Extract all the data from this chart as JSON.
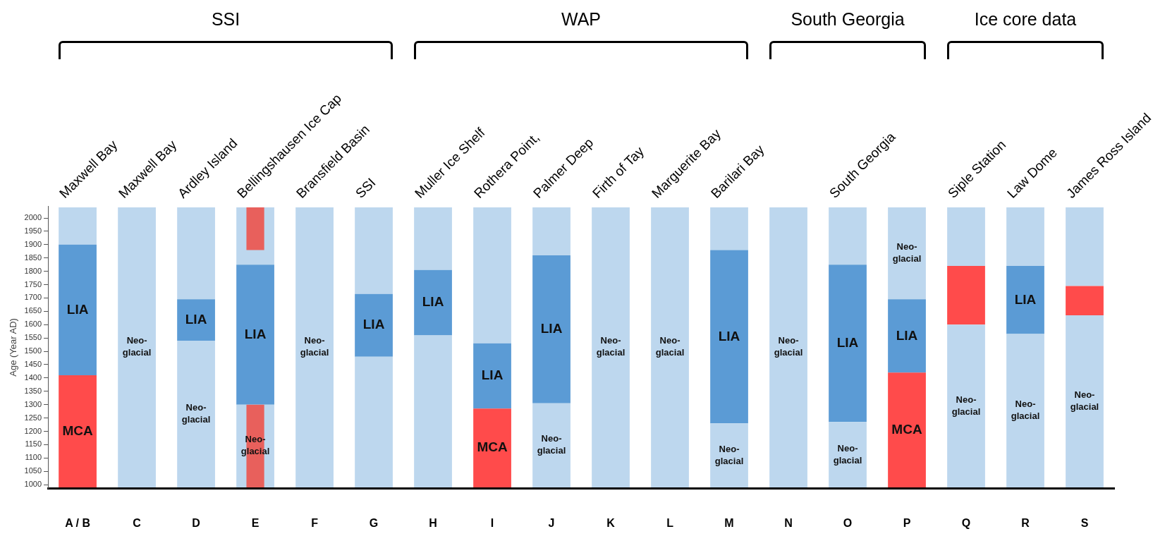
{
  "chart_data": {
    "type": "bar",
    "ylabel": "Age (Year AD)",
    "categories": [
      "A / B",
      "C",
      "D",
      "E",
      "F",
      "G",
      "H",
      "I",
      "J",
      "K",
      "L",
      "M",
      "N",
      "O",
      "P",
      "Q",
      "R",
      "S"
    ],
    "ylim": [
      985,
      2045
    ],
    "yticks": [
      1000,
      1050,
      1100,
      1150,
      1200,
      1250,
      1300,
      1350,
      1400,
      1450,
      1500,
      1550,
      1600,
      1650,
      1700,
      1750,
      1800,
      1850,
      1900,
      1950,
      2000
    ],
    "series": [
      {
        "base": [
          990,
          990,
          990,
          990,
          990,
          990,
          990,
          990,
          990,
          990,
          990,
          990,
          990,
          990,
          990,
          990,
          990,
          990
        ],
        "values": [
          420,
          1050,
          550,
          310,
          1050,
          490,
          570,
          295,
          315,
          1050,
          1050,
          240,
          1050,
          245,
          430,
          610,
          575,
          645
        ],
        "colors": [
          "#ff4b4b",
          "#bdd7ee",
          "#bdd7ee",
          "#bdd7ee",
          "#bdd7ee",
          "#bdd7ee",
          "#bdd7ee",
          "#ff4b4b",
          "#bdd7ee",
          "#bdd7ee",
          "#bdd7ee",
          "#bdd7ee",
          "#bdd7ee",
          "#bdd7ee",
          "#ff4b4b",
          "#bdd7ee",
          "#bdd7ee",
          "#bdd7ee"
        ],
        "value_labels": [
          "MCA",
          "Neo-glacial",
          "Neo-glacial",
          "Neo-glacial",
          "Neo-glacial",
          null,
          null,
          "MCA",
          "Neo-glacial",
          "Neo-glacial",
          "Neo-glacial",
          "Neo-glacial",
          "Neo-glacial",
          "Neo-glacial",
          "MCA",
          "Neo-glacial",
          "Neo-glacial",
          "Neo-glacial"
        ]
      },
      {
        "base": [
          1410,
          null,
          1540,
          1300,
          null,
          1480,
          1560,
          1285,
          1305,
          null,
          null,
          1230,
          null,
          1235,
          1420,
          1600,
          1565,
          1635
        ],
        "values": [
          490,
          null,
          155,
          525,
          null,
          235,
          245,
          245,
          555,
          null,
          null,
          650,
          null,
          590,
          275,
          220,
          255,
          110
        ],
        "colors": [
          "#5b9bd5",
          "#5b9bd5",
          "#5b9bd5",
          "#5b9bd5",
          "#5b9bd5",
          "#5b9bd5",
          "#5b9bd5",
          "#5b9bd5",
          "#5b9bd5",
          "#5b9bd5",
          "#5b9bd5",
          "#5b9bd5",
          "#5b9bd5",
          "#5b9bd5",
          "#5b9bd5",
          "#ff4b4b",
          "#5b9bd5",
          "#ff4b4b"
        ],
        "value_labels": [
          "LIA",
          null,
          "LIA",
          "LIA",
          null,
          "LIA",
          "LIA",
          "LIA",
          "LIA",
          null,
          null,
          "LIA",
          null,
          "LIA",
          "LIA",
          null,
          "LIA",
          null
        ]
      },
      {
        "base": [
          1900,
          null,
          1695,
          1825,
          null,
          1715,
          1805,
          1530,
          1860,
          null,
          null,
          1880,
          null,
          1825,
          1695,
          1820,
          1820,
          1745
        ],
        "values": [
          140,
          null,
          345,
          215,
          null,
          325,
          235,
          510,
          180,
          null,
          null,
          160,
          null,
          215,
          345,
          220,
          220,
          295
        ],
        "colors": [
          "#bdd7ee",
          "#bdd7ee",
          "#bdd7ee",
          "#bdd7ee",
          "#bdd7ee",
          "#bdd7ee",
          "#bdd7ee",
          "#bdd7ee",
          "#bdd7ee",
          "#bdd7ee",
          "#bdd7ee",
          "#bdd7ee",
          "#bdd7ee",
          "#bdd7ee",
          "#bdd7ee",
          "#bdd7ee",
          "#bdd7ee",
          "#bdd7ee"
        ],
        "value_labels": [
          null,
          null,
          null,
          null,
          null,
          null,
          null,
          null,
          null,
          null,
          null,
          null,
          null,
          null,
          "Neo-glacial",
          null,
          null,
          null
        ]
      },
      {
        "base": [
          null,
          null,
          null,
          990,
          null,
          null,
          null,
          null,
          null,
          null,
          null,
          null,
          null,
          null,
          null,
          null,
          null,
          null
        ],
        "values": [
          null,
          null,
          null,
          310,
          null,
          null,
          null,
          null,
          null,
          null,
          null,
          null,
          null,
          null,
          null,
          null,
          null,
          null
        ],
        "color": "#e8605c"
      },
      {
        "base": [
          null,
          null,
          null,
          1880,
          null,
          null,
          null,
          null,
          null,
          null,
          null,
          null,
          null,
          null,
          null,
          null,
          null,
          null
        ],
        "values": [
          null,
          null,
          null,
          160,
          null,
          null,
          null,
          null,
          null,
          null,
          null,
          null,
          null,
          null,
          null,
          null,
          null,
          null
        ],
        "color": "#e8605c"
      }
    ],
    "annotations": [
      "SSI",
      "WAP",
      "South Georgia",
      "Ice core data",
      {
        "text": "Maxwell Bay",
        "x": "A / B",
        "y": 2040
      },
      {
        "text": "Maxwell Bay",
        "x": "C",
        "y": 2040
      },
      {
        "text": "Ardley Island",
        "x": "D",
        "y": 2040
      },
      {
        "text": "Bellingshausen Ice Cap",
        "x": "E",
        "y": 2040
      },
      {
        "text": "Bransfield Basin",
        "x": "F",
        "y": 2040
      },
      {
        "text": "SSI",
        "x": "G",
        "y": 2040
      },
      {
        "text": "Muller Ice Shelf",
        "x": "H",
        "y": 2040
      },
      {
        "text": "Rothera Point,",
        "x": "I",
        "y": 2040
      },
      {
        "text": "Palmer Deep",
        "x": "J",
        "y": 2040
      },
      {
        "text": "Firth of Tay",
        "x": "K",
        "y": 2040
      },
      {
        "text": "Marguerite Bay",
        "x": "L",
        "y": 2040
      },
      {
        "text": "Barilari Bay",
        "x": "M",
        "y": 2040
      },
      {
        "text": "South Georgia",
        "x": "O",
        "y": 2040
      },
      {
        "text": "Siple Station",
        "x": "Q",
        "y": 2040
      },
      {
        "text": "Law Dome",
        "x": "R",
        "y": 2040
      },
      {
        "text": "James Ross Island",
        "x": "S",
        "y": 2040
      }
    ]
  }
}
